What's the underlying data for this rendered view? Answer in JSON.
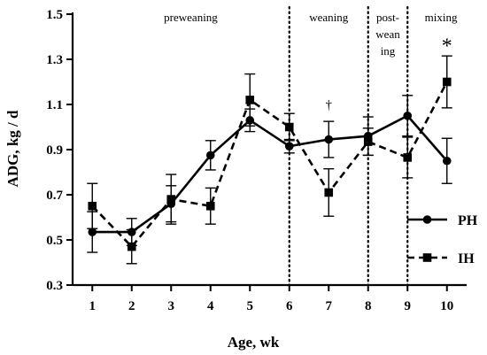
{
  "chart_data": {
    "type": "line",
    "xlabel": "Age, wk",
    "ylabel": "ADG, kg / d",
    "xlim": [
      0.5,
      10.5
    ],
    "ylim": [
      0.3,
      1.5
    ],
    "x_ticks": [
      1,
      2,
      3,
      4,
      5,
      6,
      7,
      8,
      9,
      10
    ],
    "y_ticks": [
      "0.3",
      "0.5",
      "0.7",
      "0.9",
      "1.1",
      "1.3",
      "1.5"
    ],
    "series": [
      {
        "name": "PH",
        "line_style": "solid",
        "marker": "circle",
        "x": [
          1,
          2,
          3,
          4,
          5,
          6,
          7,
          8,
          9,
          10
        ],
        "y": [
          0.535,
          0.535,
          0.66,
          0.875,
          1.03,
          0.915,
          0.945,
          0.96,
          1.05,
          0.85
        ],
        "err": [
          0.09,
          0.06,
          0.08,
          0.065,
          0.05,
          0.03,
          0.08,
          0.085,
          0.09,
          0.1
        ]
      },
      {
        "name": "IH",
        "line_style": "dashed",
        "marker": "square",
        "x": [
          1,
          2,
          3,
          4,
          5,
          6,
          7,
          8,
          9,
          10
        ],
        "y": [
          0.65,
          0.47,
          0.68,
          0.65,
          1.12,
          1.0,
          0.71,
          0.935,
          0.865,
          1.2
        ],
        "err": [
          0.1,
          0.075,
          0.11,
          0.08,
          0.115,
          0.06,
          0.105,
          0.06,
          0.09,
          0.115
        ]
      }
    ],
    "phase_lines_x": [
      6,
      8,
      9
    ],
    "phases": [
      {
        "lines": [
          "preweaning"
        ],
        "x": 3.5
      },
      {
        "lines": [
          "weaning"
        ],
        "x": 7.0
      },
      {
        "lines": [
          "post-",
          "wean",
          "ing"
        ],
        "x": 8.5
      },
      {
        "lines": [
          "mixing"
        ],
        "x": 9.85
      }
    ],
    "annotations": [
      {
        "text": "†",
        "x": 7,
        "y": 1.08,
        "size": "small"
      },
      {
        "text": "*",
        "x": 10,
        "y": 1.33,
        "size": "large"
      }
    ],
    "legend_position": "bottom-right"
  }
}
